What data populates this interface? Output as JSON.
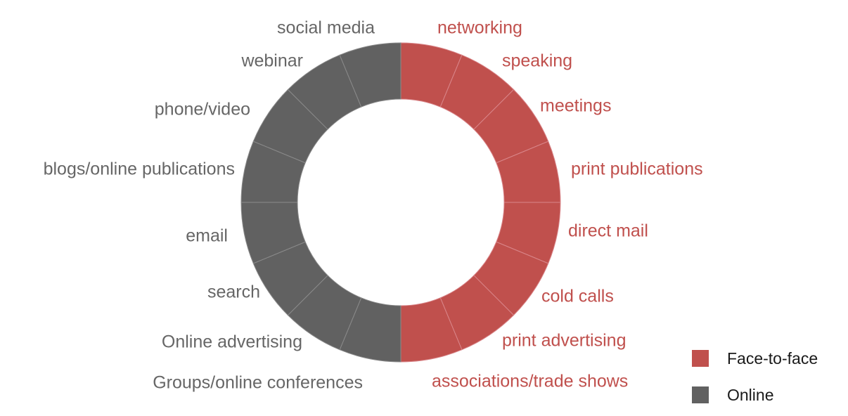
{
  "chart_data": {
    "type": "pie",
    "style": "donut",
    "title": "",
    "series": [
      {
        "name": "Face-to-face",
        "color": "#c0504d",
        "labels": [
          "networking",
          "speaking",
          "meetings",
          "print publications",
          "direct mail",
          "cold calls",
          "print advertising",
          "associations/trade shows"
        ],
        "values": [
          1,
          1,
          1,
          1,
          1,
          1,
          1,
          1
        ]
      },
      {
        "name": "Online",
        "color": "#616161",
        "labels": [
          "Groups/online conferences",
          "Online advertising",
          "search",
          "email",
          "blogs/online publications",
          "phone/video",
          "webinar",
          "social media"
        ],
        "values": [
          1,
          1,
          1,
          1,
          1,
          1,
          1,
          1
        ]
      }
    ],
    "label_colors": {
      "Face-to-face": "#c0504d",
      "Online": "#666666"
    },
    "legend": {
      "position": "bottom-right",
      "items": [
        {
          "label": "Face-to-face",
          "color": "#c0504d"
        },
        {
          "label": "Online",
          "color": "#616161"
        }
      ]
    }
  }
}
